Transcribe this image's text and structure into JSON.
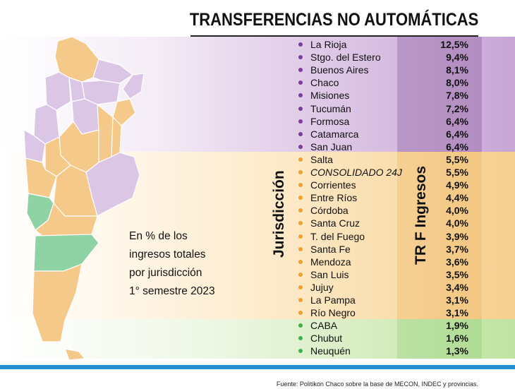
{
  "chart_data": {
    "type": "table",
    "title": "TRANSFERENCIAS NO AUTOMÁTICAS",
    "subtitle_lines": [
      "En % de los",
      "ingresos totales",
      "por jurisdicción",
      "1° semestre 2023"
    ],
    "column_labels": [
      "Jurisdicción",
      "TR F Ingresos"
    ],
    "source": "Fuente: Politikon Chaco sobre la base de MECON, INDEC y provincias.",
    "group_colors": {
      "purple": "#7b3f98",
      "orange": "#f0a030",
      "green": "#3fb04a"
    },
    "rows": [
      {
        "name": "La Rioja",
        "value": "12,5%",
        "group": "purple"
      },
      {
        "name": "Stgo. del Estero",
        "value": "9,4%",
        "group": "purple"
      },
      {
        "name": "Buenos Aires",
        "value": "8,1%",
        "group": "purple"
      },
      {
        "name": "Chaco",
        "value": "8,0%",
        "group": "purple"
      },
      {
        "name": "Misiones",
        "value": "7,8%",
        "group": "purple"
      },
      {
        "name": "Tucumán",
        "value": "7,2%",
        "group": "purple"
      },
      {
        "name": "Formosa",
        "value": "6,4%",
        "group": "purple"
      },
      {
        "name": "Catamarca",
        "value": "6,4%",
        "group": "purple"
      },
      {
        "name": "San Juan",
        "value": "6,4%",
        "group": "purple"
      },
      {
        "name": "Salta",
        "value": "5,5%",
        "group": "orange"
      },
      {
        "name": "CONSOLIDADO 24J",
        "value": "5,5%",
        "group": "orange",
        "italic": true
      },
      {
        "name": "Corrientes",
        "value": "4,9%",
        "group": "orange"
      },
      {
        "name": "Entre Ríos",
        "value": "4,4%",
        "group": "orange"
      },
      {
        "name": "Córdoba",
        "value": "4,0%",
        "group": "orange"
      },
      {
        "name": "Santa Cruz",
        "value": "4,0%",
        "group": "orange"
      },
      {
        "name": "T. del Fuego",
        "value": "3,9%",
        "group": "orange"
      },
      {
        "name": "Santa Fe",
        "value": "3,7%",
        "group": "orange"
      },
      {
        "name": "Mendoza",
        "value": "3,6%",
        "group": "orange"
      },
      {
        "name": "San Luis",
        "value": "3,5%",
        "group": "orange"
      },
      {
        "name": "Jujuy",
        "value": "3,4%",
        "group": "orange"
      },
      {
        "name": "La Pampa",
        "value": "3,1%",
        "group": "orange"
      },
      {
        "name": "Río Negro",
        "value": "3,1%",
        "group": "orange"
      },
      {
        "name": "CABA",
        "value": "1,9%",
        "group": "green"
      },
      {
        "name": "Chubut",
        "value": "1,6%",
        "group": "green"
      },
      {
        "name": "Neuquén",
        "value": "1,3%",
        "group": "green"
      }
    ]
  }
}
